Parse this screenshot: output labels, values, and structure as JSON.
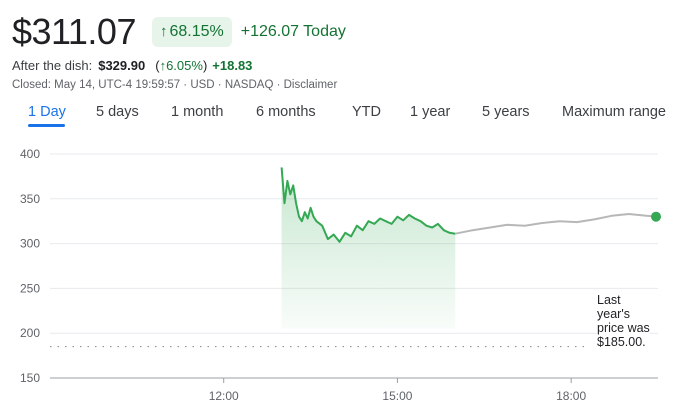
{
  "quote": {
    "price": "$311.07",
    "change_arrow": "↑",
    "change_percent": "68.15%",
    "change_today": "+126.07 Today"
  },
  "after_hours": {
    "label": "After the dish:",
    "price": "$329.90",
    "paren_open": "(",
    "arrow": "↑",
    "percent": "6.05%",
    "paren_close": ")",
    "change": "+18.83"
  },
  "closed_line": "Closed: May 14, UTC-4 19:59:57 · USD · NASDAQ · Disclaimer",
  "tabs": [
    {
      "label": "1 Day",
      "active": true
    },
    {
      "label": "5 days"
    },
    {
      "label": "1 month"
    },
    {
      "label": "6 months"
    },
    {
      "label": "YTD"
    },
    {
      "label": "1 year"
    },
    {
      "label": "5 years"
    },
    {
      "label": "Maximum range"
    }
  ],
  "colors": {
    "up_green": "#34a853",
    "after_hours_gray": "#b7b7b7",
    "accent_blue": "#1a73e8",
    "grid": "#e8eaed"
  },
  "note": {
    "lines": [
      "Last",
      "year's",
      "price was",
      "$185.00."
    ]
  },
  "chart_data": {
    "type": "line",
    "xlabel": "",
    "ylabel": "",
    "ylim": [
      150,
      400
    ],
    "yticks": [
      400,
      350,
      300,
      250,
      200,
      150
    ],
    "xticks": [
      {
        "t": 12,
        "label": "12:00"
      },
      {
        "t": 15,
        "label": "15:00"
      },
      {
        "t": 18,
        "label": "18:00"
      }
    ],
    "xlim": [
      9,
      19.5
    ],
    "reference_line": {
      "value": 185,
      "label": "Last year's price was $185.00."
    },
    "series": [
      {
        "session": "regular",
        "x": [
          13.0,
          13.05,
          13.1,
          13.15,
          13.2,
          13.25,
          13.3,
          13.35,
          13.4,
          13.45,
          13.5,
          13.55,
          13.6,
          13.7,
          13.8,
          13.9,
          14.0,
          14.1,
          14.2,
          14.3,
          14.4,
          14.5,
          14.6,
          14.7,
          14.8,
          14.9,
          15.0,
          15.1,
          15.2,
          15.3,
          15.4,
          15.5,
          15.6,
          15.7,
          15.8,
          15.9,
          16.0
        ],
        "y": [
          385,
          345,
          370,
          355,
          365,
          345,
          330,
          325,
          335,
          328,
          340,
          330,
          325,
          320,
          305,
          310,
          302,
          312,
          308,
          320,
          315,
          325,
          322,
          328,
          325,
          322,
          330,
          326,
          332,
          328,
          325,
          320,
          318,
          322,
          315,
          312,
          311
        ]
      },
      {
        "session": "after_hours",
        "x": [
          16.0,
          16.3,
          16.6,
          16.9,
          17.2,
          17.5,
          17.8,
          18.1,
          18.4,
          18.7,
          19.0,
          19.3,
          19.5
        ],
        "y": [
          311,
          315,
          318,
          321,
          320,
          323,
          325,
          324,
          327,
          331,
          333,
          331,
          330
        ]
      }
    ]
  }
}
